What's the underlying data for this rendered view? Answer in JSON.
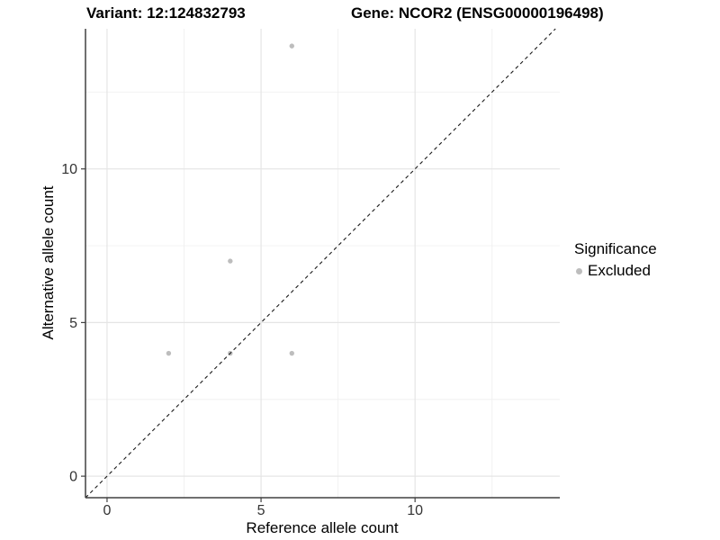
{
  "chart_data": {
    "type": "scatter",
    "title_left": "Variant: 12:124832793",
    "title_right": "Gene: NCOR2 (ENSG00000196498)",
    "xlabel": "Reference allele count",
    "ylabel": "Alternative allele count",
    "xlim": [
      -0.7,
      14.7
    ],
    "ylim": [
      -0.7,
      14.56
    ],
    "x_ticks": [
      0,
      5,
      10
    ],
    "y_ticks": [
      0,
      5,
      10
    ],
    "x_minor_gridlines": [
      2.5,
      7.5,
      12.5
    ],
    "y_minor_gridlines": [
      2.5,
      7.5,
      12.5
    ],
    "grid": "on",
    "series": [
      {
        "name": "Excluded",
        "marker": "circle",
        "color": "#bdbdbd",
        "points": [
          {
            "x": 2,
            "y": 4
          },
          {
            "x": 4,
            "y": 4
          },
          {
            "x": 6,
            "y": 4
          },
          {
            "x": 4,
            "y": 7
          },
          {
            "x": 6,
            "y": 14
          }
        ]
      }
    ],
    "reference_line": {
      "kind": "identity",
      "slope": 1,
      "intercept": 0,
      "linestyle": "dashed",
      "color": "#1a1a1a"
    },
    "legend": {
      "title": "Significance",
      "position": "right",
      "items": [
        {
          "label": "Excluded",
          "color": "#bdbdbd",
          "marker": "circle"
        }
      ]
    },
    "colors": {
      "background": "#ffffff",
      "grid_major": "#e5e5e5",
      "grid_minor": "#f0f0f0",
      "axis_line": "#404040",
      "tick_mark": "#404040",
      "tick_label": "#333333",
      "point": "#bdbdbd"
    }
  }
}
